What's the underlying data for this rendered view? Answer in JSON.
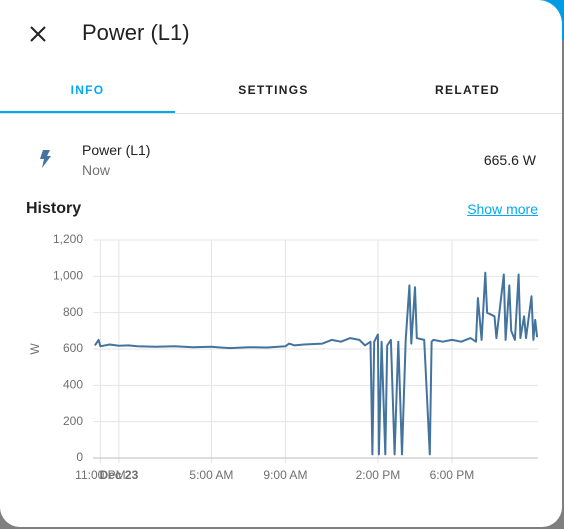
{
  "header": {
    "title": "Power (L1)"
  },
  "tabs": [
    "INFO",
    "SETTINGS",
    "RELATED"
  ],
  "entity": {
    "name": "Power (L1)",
    "time": "Now",
    "state": "665.6 W"
  },
  "history": {
    "title": "History",
    "link": "Show more"
  },
  "chart_data": {
    "type": "line",
    "y_label": "W",
    "x": [
      -1.3,
      -1.1,
      -1.0,
      -0.5,
      0,
      0.5,
      1,
      2,
      3,
      4,
      5,
      5.5,
      6,
      7,
      8,
      9,
      9.2,
      9.5,
      10,
      11,
      11.5,
      12,
      12.5,
      13,
      13.3,
      13.6,
      13.7,
      13.8,
      14,
      14.05,
      14.2,
      14.4,
      14.5,
      14.7,
      14.9,
      15.1,
      15.3,
      15.5,
      15.7,
      15.8,
      16,
      16.1,
      16.5,
      16.8,
      16.9,
      17,
      17.5,
      18,
      18.5,
      19,
      19.3,
      19.4,
      19.6,
      19.8,
      19.9,
      20.3,
      20.4,
      20.8,
      20.9,
      21.1,
      21.2,
      21.4,
      21.6,
      21.7,
      21.9,
      22,
      22.3,
      22.4,
      22.5,
      22.6
    ],
    "series": [
      {
        "name": "Power (L1)",
        "color": "#44739e",
        "values": [
          620,
          650,
          615,
          625,
          618,
          620,
          615,
          612,
          615,
          610,
          612,
          608,
          605,
          610,
          608,
          615,
          630,
          620,
          625,
          630,
          650,
          640,
          660,
          650,
          620,
          640,
          20,
          640,
          680,
          20,
          640,
          20,
          620,
          650,
          20,
          640,
          20,
          650,
          950,
          630,
          940,
          660,
          650,
          20,
          640,
          650,
          640,
          650,
          640,
          660,
          640,
          880,
          650,
          1020,
          800,
          780,
          660,
          1010,
          650,
          950,
          700,
          650,
          1010,
          660,
          780,
          660,
          890,
          650,
          760,
          665
        ]
      }
    ],
    "xlim": [
      -1.4,
      22.65
    ],
    "xticks": [
      {
        "value": -1,
        "label": "11:00 PM"
      },
      {
        "value": 0,
        "label": "Dec 23"
      },
      {
        "value": 5,
        "label": "5:00 AM"
      },
      {
        "value": 9,
        "label": "9:00 AM"
      },
      {
        "value": 14,
        "label": "2:00 PM"
      },
      {
        "value": 18,
        "label": "6:00 PM"
      }
    ],
    "ylim": [
      0,
      1200
    ],
    "yticks": [
      0,
      200,
      400,
      600,
      800,
      {
        "value": 1000,
        "label": "1,000"
      },
      {
        "value": 1200,
        "label": "1,200"
      }
    ],
    "grid": true
  }
}
